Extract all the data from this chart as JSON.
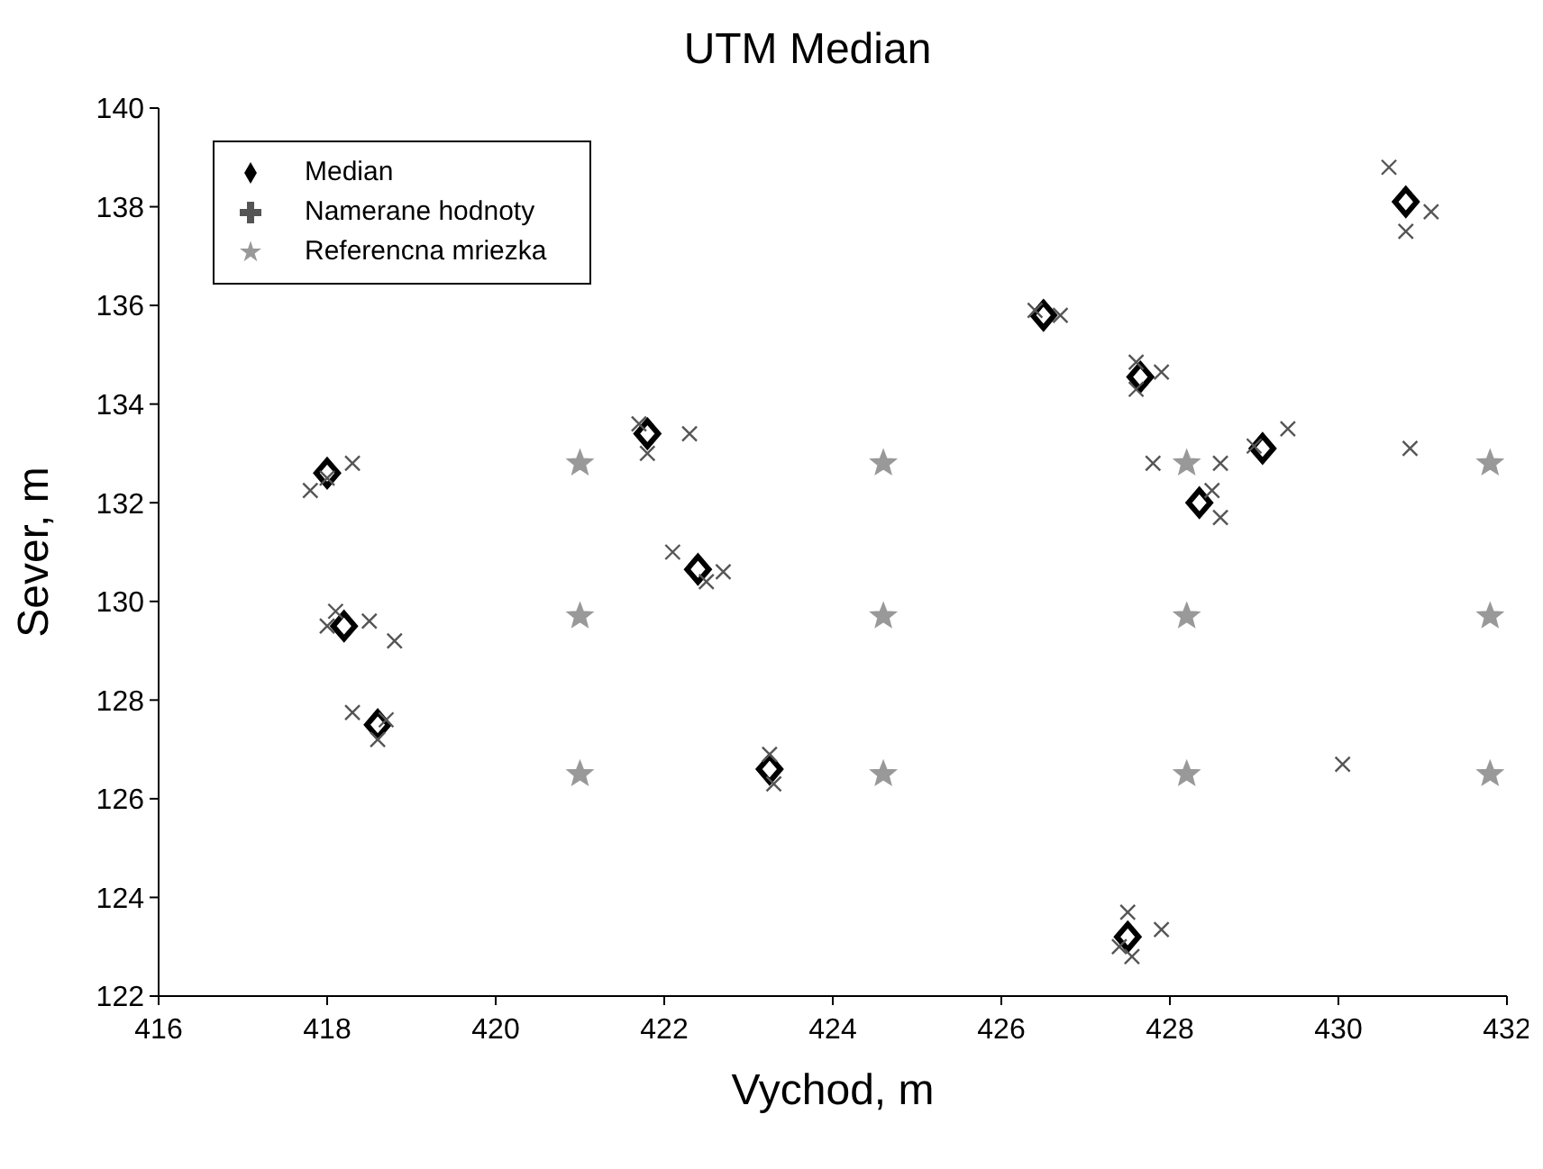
{
  "chart_data": {
    "type": "scatter",
    "title": "UTM Median",
    "xlabel": "Vychod, m",
    "ylabel": "Sever, m",
    "xlim": [
      416,
      432
    ],
    "xticks": [
      416,
      418,
      420,
      422,
      424,
      426,
      428,
      430,
      432
    ],
    "ylim": [
      122,
      140
    ],
    "yticks": [
      122,
      124,
      126,
      128,
      130,
      132,
      134,
      136,
      138,
      140
    ],
    "grid": false,
    "legend": "top left",
    "series": [
      {
        "name": "Median",
        "color": "#000000",
        "marker": "diamond",
        "x": [
          418.0,
          418.2,
          418.6,
          421.8,
          422.4,
          423.25,
          426.5,
          427.65,
          428.35,
          429.1,
          430.8,
          427.5
        ],
        "values": [
          132.6,
          129.5,
          127.5,
          133.4,
          130.65,
          126.6,
          135.8,
          134.55,
          132.0,
          133.1,
          138.1,
          123.2
        ]
      },
      {
        "name": "Namerane hodnoty",
        "color": "#555555",
        "marker": "cross",
        "x": [
          417.8,
          418.3,
          418.0,
          418.0,
          418.1,
          418.5,
          418.8,
          418.3,
          418.7,
          418.6,
          421.7,
          421.8,
          422.3,
          422.1,
          422.7,
          422.5,
          423.25,
          423.3,
          426.4,
          426.7,
          427.6,
          427.9,
          427.6,
          427.8,
          428.6,
          428.5,
          428.6,
          429.4,
          429.0,
          430.6,
          430.8,
          431.1,
          430.85,
          430.05,
          427.5,
          427.4,
          427.55,
          427.9
        ],
        "values": [
          132.25,
          132.8,
          132.5,
          129.5,
          129.8,
          129.6,
          129.2,
          127.75,
          127.6,
          127.2,
          133.6,
          133.0,
          133.4,
          131.0,
          130.6,
          130.4,
          126.9,
          126.3,
          135.9,
          135.8,
          134.85,
          134.65,
          134.3,
          132.8,
          132.8,
          132.25,
          131.7,
          133.5,
          133.15,
          138.8,
          137.5,
          137.9,
          133.1,
          126.7,
          123.7,
          123.0,
          122.8,
          123.35
        ]
      },
      {
        "name": "Referencna mriezka",
        "color": "#999999",
        "marker": "star",
        "x": [
          421,
          424.6,
          428.2,
          431.8,
          421,
          424.6,
          428.2,
          431.8,
          421,
          424.6,
          428.2,
          431.8
        ],
        "values": [
          132.8,
          132.8,
          132.8,
          132.8,
          129.7,
          129.7,
          129.7,
          129.7,
          126.5,
          126.5,
          126.5,
          126.5
        ]
      }
    ]
  }
}
